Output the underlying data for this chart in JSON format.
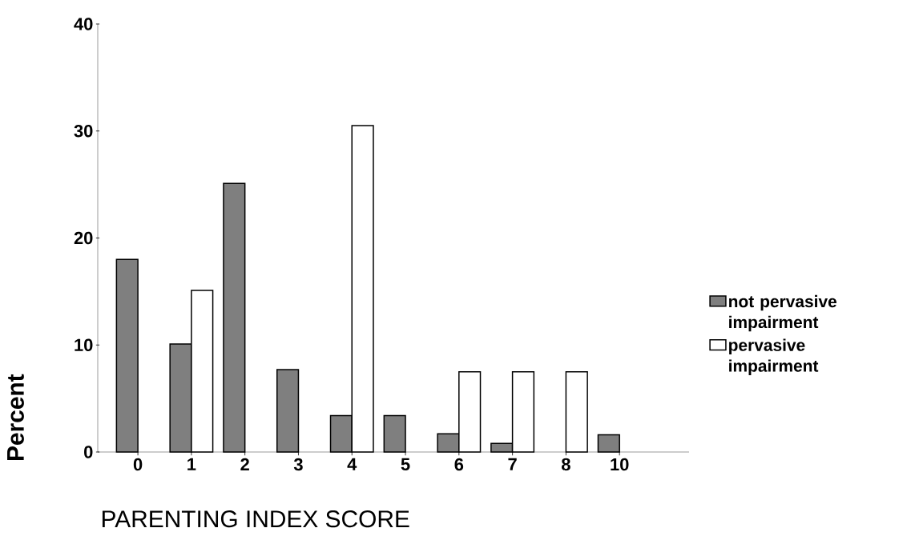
{
  "chart_data": {
    "type": "bar",
    "xlabel": "PARENTING INDEX SCORE",
    "ylabel": "Percent",
    "categories": [
      "0",
      "1",
      "2",
      "3",
      "4",
      "5",
      "6",
      "7",
      "8",
      "10"
    ],
    "series": [
      {
        "name": "not pervasive impairment",
        "color": "#7f7f7f",
        "values": [
          18.0,
          10.1,
          25.1,
          7.7,
          3.4,
          3.4,
          1.7,
          0.8,
          0,
          1.6
        ]
      },
      {
        "name": "pervasive impairment",
        "color": "#ffffff",
        "values": [
          0,
          15.1,
          0,
          0,
          30.5,
          0,
          7.5,
          7.5,
          7.5,
          0
        ]
      }
    ],
    "ylim": [
      0,
      40
    ],
    "yticks": [
      0,
      10,
      20,
      30,
      40
    ],
    "grid": false,
    "legend": "right"
  }
}
